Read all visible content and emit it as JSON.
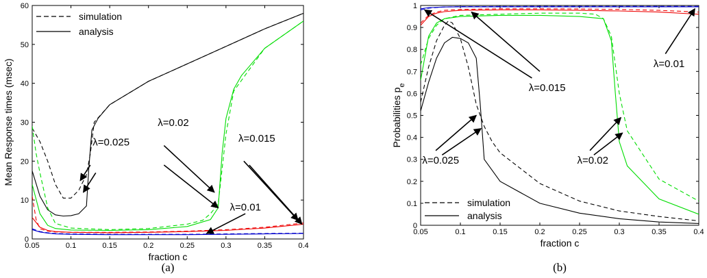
{
  "chart_data": [
    {
      "type": "line",
      "caption": "(a)",
      "xlabel": "fraction c",
      "ylabel": "Mean Response times (msec)",
      "xlim": [
        0.05,
        0.4
      ],
      "ylim": [
        0,
        60
      ],
      "xticks": [
        "0.05",
        "0.1",
        "0.15",
        "0.2",
        "0.25",
        "0.3",
        "0.35",
        "0.4"
      ],
      "yticks": [
        "0",
        "10",
        "20",
        "30",
        "40",
        "50",
        "60"
      ],
      "legend": {
        "position": "top-left",
        "entries": [
          {
            "label": "simulation",
            "style": "dashed"
          },
          {
            "label": "analysis",
            "style": "solid"
          }
        ]
      },
      "colors": {
        "0.025": "#000000",
        "0.02": "#00dd00",
        "0.015": "#ee0000",
        "0.01": "#0000cc"
      },
      "series": [
        {
          "lambda": "0.025",
          "kind": "simulation",
          "x": [
            0.05,
            0.06,
            0.07,
            0.08,
            0.09,
            0.1,
            0.11,
            0.12,
            0.125,
            0.13,
            0.15,
            0.2,
            0.25,
            0.3,
            0.35,
            0.4
          ],
          "y": [
            28.5,
            25,
            20,
            14,
            10.5,
            10.5,
            12.5,
            16.5,
            22,
            30,
            34.5,
            40.5,
            45,
            49.5,
            54,
            58
          ]
        },
        {
          "lambda": "0.025",
          "kind": "analysis",
          "x": [
            0.05,
            0.06,
            0.07,
            0.08,
            0.09,
            0.1,
            0.11,
            0.12,
            0.123,
            0.127,
            0.135,
            0.15,
            0.2,
            0.25,
            0.3,
            0.35,
            0.4
          ],
          "y": [
            17.5,
            11,
            7.5,
            6.2,
            5.9,
            6.0,
            6.5,
            8.5,
            18,
            28,
            31,
            34.5,
            40.5,
            45,
            49.5,
            54,
            58
          ]
        },
        {
          "lambda": "0.02",
          "kind": "simulation",
          "x": [
            0.05,
            0.055,
            0.06,
            0.07,
            0.08,
            0.1,
            0.15,
            0.2,
            0.25,
            0.27,
            0.28,
            0.29,
            0.3,
            0.31,
            0.35,
            0.4
          ],
          "y": [
            29,
            22,
            17,
            8,
            4,
            2.8,
            2.4,
            2.7,
            3.8,
            4.8,
            6.5,
            9,
            27,
            38,
            49,
            56
          ]
        },
        {
          "lambda": "0.02",
          "kind": "analysis",
          "x": [
            0.05,
            0.06,
            0.07,
            0.08,
            0.1,
            0.15,
            0.2,
            0.25,
            0.28,
            0.29,
            0.295,
            0.3,
            0.31,
            0.32,
            0.35,
            0.4
          ],
          "y": [
            14,
            6.5,
            3.5,
            2.7,
            2.3,
            2.2,
            2.4,
            3.2,
            5,
            8,
            22,
            31,
            38.5,
            42,
            49,
            56
          ]
        },
        {
          "lambda": "0.015",
          "kind": "simulation",
          "x": [
            0.05,
            0.055,
            0.06,
            0.07,
            0.08,
            0.1,
            0.15,
            0.2,
            0.25,
            0.3,
            0.35,
            0.4
          ],
          "y": [
            11,
            5,
            2.6,
            2.0,
            1.8,
            1.7,
            1.7,
            1.8,
            2.0,
            2.4,
            3.0,
            4.1
          ]
        },
        {
          "lambda": "0.015",
          "kind": "analysis",
          "x": [
            0.05,
            0.06,
            0.07,
            0.08,
            0.1,
            0.15,
            0.2,
            0.25,
            0.3,
            0.35,
            0.4
          ],
          "y": [
            5.5,
            3.0,
            2.2,
            1.9,
            1.7,
            1.6,
            1.7,
            1.9,
            2.2,
            2.8,
            3.8
          ]
        },
        {
          "lambda": "0.01",
          "kind": "simulation",
          "x": [
            0.05,
            0.06,
            0.07,
            0.08,
            0.1,
            0.15,
            0.2,
            0.25,
            0.3,
            0.35,
            0.4
          ],
          "y": [
            2.6,
            1.9,
            1.6,
            1.4,
            1.3,
            1.2,
            1.2,
            1.2,
            1.3,
            1.4,
            1.5
          ]
        },
        {
          "lambda": "0.01",
          "kind": "analysis",
          "x": [
            0.05,
            0.06,
            0.07,
            0.08,
            0.1,
            0.15,
            0.2,
            0.25,
            0.3,
            0.35,
            0.4
          ],
          "y": [
            2.4,
            1.8,
            1.5,
            1.3,
            1.2,
            1.1,
            1.1,
            1.1,
            1.2,
            1.3,
            1.4
          ]
        }
      ],
      "annotations": [
        {
          "text": "λ=0.025",
          "x": 0.128,
          "y": 24,
          "arrows": [
            [
              0.125,
              19,
              0.112,
              15
            ],
            [
              0.132,
              17,
              0.116,
              12
            ]
          ]
        },
        {
          "text": "λ=0.02",
          "x": 0.212,
          "y": 29,
          "arrows": [
            [
              0.22,
              24,
              0.285,
              12
            ],
            [
              0.22,
              19,
              0.29,
              8
            ]
          ]
        },
        {
          "text": "λ=0.015",
          "x": 0.316,
          "y": 25,
          "arrows": [
            [
              0.323,
              20,
              0.393,
              4.8
            ],
            [
              0.33,
              19,
              0.398,
              3.8
            ]
          ]
        },
        {
          "text": "λ=0.01",
          "x": 0.305,
          "y": 7.3,
          "arrows": [
            [
              0.325,
              6.5,
              0.275,
              1.4
            ]
          ]
        }
      ]
    },
    {
      "type": "line",
      "caption": "(b)",
      "xlabel": "fraction c",
      "ylabel": "Probabilities p_e",
      "xlim": [
        0.05,
        0.4
      ],
      "ylim": [
        0,
        1
      ],
      "xticks": [
        "0.05",
        "0.1",
        "0.15",
        "0.2",
        "0.25",
        "0.3",
        "0.35",
        "0.4"
      ],
      "yticks": [
        "0",
        "0.1",
        "0.2",
        "0.3",
        "0.4",
        "0.5",
        "0.6",
        "0.7",
        "0.8",
        "0.9",
        "1"
      ],
      "legend": {
        "position": "bottom-left",
        "entries": [
          {
            "label": "simulation",
            "style": "dashed"
          },
          {
            "label": "analysis",
            "style": "solid"
          }
        ]
      },
      "colors": {
        "0.025": "#000000",
        "0.02": "#00dd00",
        "0.015": "#ee0000",
        "0.01": "#0000cc"
      },
      "series": [
        {
          "lambda": "0.025",
          "kind": "simulation",
          "x": [
            0.05,
            0.06,
            0.07,
            0.08,
            0.085,
            0.09,
            0.1,
            0.11,
            0.12,
            0.13,
            0.14,
            0.15,
            0.2,
            0.25,
            0.3,
            0.35,
            0.4
          ],
          "y": [
            0.56,
            0.72,
            0.84,
            0.91,
            0.93,
            0.92,
            0.85,
            0.72,
            0.55,
            0.45,
            0.38,
            0.33,
            0.19,
            0.11,
            0.065,
            0.04,
            0.02
          ]
        },
        {
          "lambda": "0.025",
          "kind": "analysis",
          "x": [
            0.05,
            0.06,
            0.07,
            0.08,
            0.09,
            0.1,
            0.11,
            0.12,
            0.125,
            0.128,
            0.13,
            0.15,
            0.2,
            0.25,
            0.3,
            0.35,
            0.4
          ],
          "y": [
            0.52,
            0.65,
            0.76,
            0.83,
            0.855,
            0.85,
            0.83,
            0.76,
            0.55,
            0.4,
            0.3,
            0.2,
            0.1,
            0.055,
            0.03,
            0.015,
            0.008
          ]
        },
        {
          "lambda": "0.02",
          "kind": "simulation",
          "x": [
            0.05,
            0.06,
            0.07,
            0.08,
            0.1,
            0.15,
            0.2,
            0.25,
            0.27,
            0.28,
            0.29,
            0.3,
            0.31,
            0.35,
            0.4
          ],
          "y": [
            0.73,
            0.85,
            0.91,
            0.94,
            0.955,
            0.96,
            0.965,
            0.965,
            0.96,
            0.94,
            0.86,
            0.6,
            0.43,
            0.21,
            0.11
          ]
        },
        {
          "lambda": "0.02",
          "kind": "analysis",
          "x": [
            0.05,
            0.06,
            0.07,
            0.08,
            0.1,
            0.15,
            0.2,
            0.25,
            0.28,
            0.29,
            0.295,
            0.3,
            0.31,
            0.35,
            0.4
          ],
          "y": [
            0.66,
            0.86,
            0.92,
            0.94,
            0.95,
            0.955,
            0.955,
            0.95,
            0.94,
            0.84,
            0.6,
            0.38,
            0.27,
            0.12,
            0.05
          ]
        },
        {
          "lambda": "0.015",
          "kind": "simulation",
          "x": [
            0.05,
            0.06,
            0.07,
            0.08,
            0.1,
            0.15,
            0.2,
            0.25,
            0.3,
            0.35,
            0.4
          ],
          "y": [
            0.92,
            0.955,
            0.97,
            0.978,
            0.982,
            0.985,
            0.985,
            0.984,
            0.982,
            0.978,
            0.97
          ]
        },
        {
          "lambda": "0.015",
          "kind": "analysis",
          "x": [
            0.05,
            0.06,
            0.07,
            0.08,
            0.1,
            0.15,
            0.2,
            0.25,
            0.3,
            0.35,
            0.4
          ],
          "y": [
            0.91,
            0.95,
            0.965,
            0.972,
            0.978,
            0.98,
            0.98,
            0.978,
            0.975,
            0.97,
            0.96
          ]
        },
        {
          "lambda": "0.01",
          "kind": "simulation",
          "x": [
            0.05,
            0.06,
            0.08,
            0.1,
            0.2,
            0.3,
            0.4
          ],
          "y": [
            0.98,
            0.988,
            0.993,
            0.995,
            0.996,
            0.996,
            0.996
          ]
        },
        {
          "lambda": "0.01",
          "kind": "analysis",
          "x": [
            0.05,
            0.06,
            0.08,
            0.1,
            0.2,
            0.3,
            0.4
          ],
          "y": [
            0.985,
            0.99,
            0.993,
            0.994,
            0.994,
            0.994,
            0.994
          ]
        }
      ],
      "annotations": [
        {
          "text": "λ=0.015",
          "x": 0.186,
          "y": 0.61,
          "arrows": [
            [
              0.19,
              0.67,
              0.055,
              0.98
            ],
            [
              0.2,
              0.7,
              0.114,
              0.97
            ]
          ]
        },
        {
          "text": "λ=0.01",
          "x": 0.343,
          "y": 0.72,
          "arrows": [
            [
              0.358,
              0.78,
              0.395,
              0.985
            ]
          ]
        },
        {
          "text": "λ=0.025",
          "x": 0.052,
          "y": 0.28,
          "arrows": [
            [
              0.069,
              0.34,
              0.12,
              0.5
            ],
            [
              0.077,
              0.32,
              0.126,
              0.44
            ]
          ]
        },
        {
          "text": "λ=0.02",
          "x": 0.247,
          "y": 0.28,
          "arrows": [
            [
              0.263,
              0.34,
              0.302,
              0.49
            ],
            [
              0.268,
              0.32,
              0.304,
              0.42
            ]
          ]
        }
      ]
    }
  ]
}
